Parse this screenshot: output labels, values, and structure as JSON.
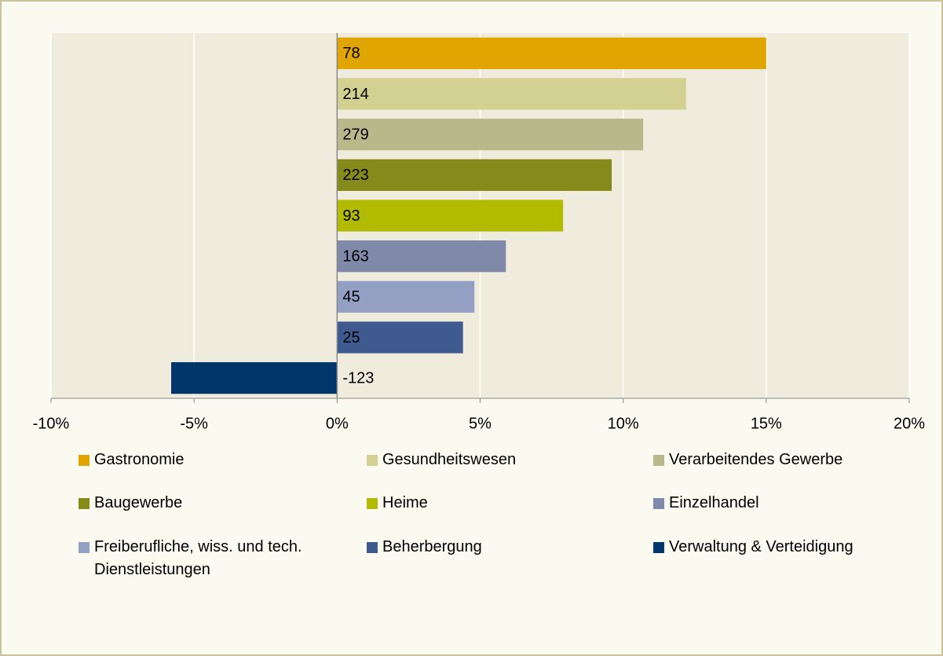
{
  "chart_data": {
    "type": "barh",
    "categories": [
      "Gastronomie",
      "Gesundheitswesen",
      "Verarbeitendes Gewerbe",
      "Baugewerbe",
      "Heime",
      "Einzelhandel",
      "Freiberufliche, wiss. und tech. Dienstleistungen",
      "Beherbergung",
      "Verwaltung & Verteidigung"
    ],
    "values": [
      15.0,
      12.2,
      10.7,
      9.6,
      7.9,
      5.9,
      4.8,
      4.4,
      -5.8
    ],
    "counts": [
      78,
      214,
      279,
      223,
      93,
      163,
      45,
      25,
      -123
    ],
    "colors": [
      "#e0a500",
      "#d3d192",
      "#b8b98a",
      "#868a1a",
      "#b2bb00",
      "#8089a8",
      "#93a0c4",
      "#3f5a8f",
      "#00376b"
    ],
    "xlim": [
      -10,
      20
    ],
    "xticks": [
      {
        "value": -10,
        "label": "-10%"
      },
      {
        "value": -5,
        "label": "-5%"
      },
      {
        "value": 0,
        "label": "0%"
      },
      {
        "value": 5,
        "label": "5%"
      },
      {
        "value": 10,
        "label": "10%"
      },
      {
        "value": 15,
        "label": "15%"
      },
      {
        "value": 20,
        "label": "20%"
      }
    ],
    "grid": true,
    "legend": "bottom"
  }
}
